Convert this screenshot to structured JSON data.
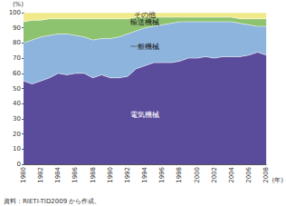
{
  "chart_data": {
    "type": "area",
    "stacked": true,
    "y_label": "(%)",
    "x_label": "(年)",
    "annotations": [
      "資料：RIETI-TID2009 から作成。"
    ],
    "categories": [
      "1980",
      null,
      "1982",
      null,
      "1984",
      null,
      "1986",
      null,
      "1988",
      null,
      "1990",
      null,
      "1992",
      null,
      "1994",
      null,
      "1996",
      null,
      "1998",
      null,
      "2000",
      null,
      "2002",
      null,
      "2004",
      null,
      "2006",
      null,
      "2008"
    ],
    "series": [
      {
        "name": "電気機械",
        "color": "#5b4b9b",
        "values": [
          55,
          53,
          55,
          57,
          60,
          59,
          60,
          60,
          57,
          59,
          57,
          57,
          58,
          63,
          65,
          67,
          67,
          67,
          68,
          70,
          70,
          71,
          70,
          71,
          71,
          71,
          72,
          74,
          72
        ]
      },
      {
        "name": "一般機械",
        "color": "#8db4dd",
        "values": [
          25,
          29,
          29,
          28,
          26,
          27,
          25,
          24,
          25,
          24,
          26,
          27,
          28,
          25,
          25,
          24,
          25,
          26,
          26,
          24,
          24,
          23,
          24,
          23,
          23,
          22,
          20,
          17,
          19
        ]
      },
      {
        "name": "輸送機械",
        "color": "#8dc26f",
        "values": [
          14,
          13,
          11,
          11,
          10,
          10,
          11,
          12,
          14,
          13,
          13,
          12,
          10,
          9,
          7,
          6,
          5,
          4,
          3,
          3,
          3,
          3,
          3,
          3,
          3,
          3,
          4,
          5,
          5
        ]
      },
      {
        "name": "その他",
        "color": "#f0ea8a",
        "values": [
          6,
          5,
          5,
          4,
          4,
          4,
          4,
          4,
          4,
          4,
          4,
          4,
          4,
          3,
          3,
          3,
          3,
          3,
          3,
          3,
          3,
          3,
          3,
          3,
          3,
          4,
          4,
          4,
          4
        ]
      }
    ],
    "ylim": [
      0,
      100
    ],
    "yticks": [
      0,
      10,
      20,
      30,
      40,
      50,
      60,
      70,
      80,
      90,
      100
    ],
    "grid": false
  }
}
